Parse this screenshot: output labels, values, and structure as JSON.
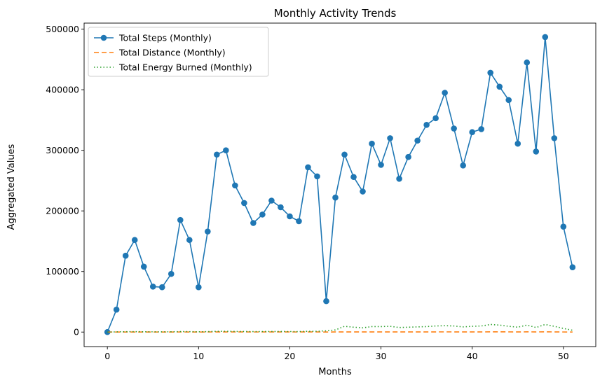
{
  "chart_data": {
    "type": "line",
    "title": "Monthly Activity Trends",
    "xlabel": "Months",
    "ylabel": "Aggregated Values",
    "xlim": [
      -2.55,
      53.55
    ],
    "ylim": [
      -24000,
      510000
    ],
    "xticks": [
      0,
      10,
      20,
      30,
      40,
      50
    ],
    "yticks": [
      0,
      100000,
      200000,
      300000,
      400000,
      500000
    ],
    "grid": false,
    "legend_position": "top-left",
    "x": [
      0,
      1,
      2,
      3,
      4,
      5,
      6,
      7,
      8,
      9,
      10,
      11,
      12,
      13,
      14,
      15,
      16,
      17,
      18,
      19,
      20,
      21,
      22,
      23,
      24,
      25,
      26,
      27,
      28,
      29,
      30,
      31,
      32,
      33,
      34,
      35,
      36,
      37,
      38,
      39,
      40,
      41,
      42,
      43,
      44,
      45,
      46,
      47,
      48,
      49,
      50,
      51
    ],
    "series": [
      {
        "name": "Total Steps (Monthly)",
        "color": "#1f77b4",
        "style": "solid-marker",
        "values": [
          0,
          37000,
          126000,
          152000,
          108000,
          75000,
          74000,
          96000,
          185000,
          152000,
          74000,
          166000,
          293000,
          300000,
          242000,
          213000,
          180000,
          194000,
          217000,
          206000,
          191000,
          183000,
          272000,
          257000,
          51000,
          222000,
          293000,
          256000,
          232000,
          311000,
          276000,
          320000,
          253000,
          289000,
          316000,
          342000,
          353000,
          395000,
          336000,
          275000,
          330000,
          335000,
          428000,
          405000,
          383000,
          311000,
          445000,
          298000,
          487000,
          320000,
          174000,
          107000
        ]
      },
      {
        "name": "Total Distance (Monthly)",
        "color": "#ff7f0e",
        "style": "dashed",
        "values": [
          0,
          30,
          90,
          110,
          80,
          55,
          55,
          70,
          135,
          110,
          55,
          120,
          210,
          215,
          175,
          155,
          130,
          140,
          155,
          150,
          140,
          135,
          200,
          190,
          40,
          160,
          210,
          185,
          170,
          225,
          200,
          230,
          185,
          210,
          230,
          250,
          255,
          285,
          245,
          200,
          240,
          245,
          310,
          295,
          280,
          225,
          320,
          215,
          350,
          230,
          125,
          80
        ]
      },
      {
        "name": "Total Energy Burned (Monthly)",
        "color": "#2ca02c",
        "style": "dotted",
        "values": [
          0,
          300,
          600,
          700,
          500,
          400,
          400,
          450,
          800,
          700,
          400,
          750,
          1200,
          1300,
          1000,
          900,
          800,
          850,
          950,
          900,
          850,
          800,
          1200,
          1300,
          2000,
          3500,
          9500,
          8000,
          7000,
          9000,
          9000,
          9500,
          7500,
          8000,
          8500,
          9000,
          10000,
          10500,
          10000,
          8500,
          9500,
          10000,
          12500,
          11500,
          9500,
          8000,
          11500,
          7500,
          12500,
          9500,
          6000,
          3000
        ]
      }
    ]
  }
}
